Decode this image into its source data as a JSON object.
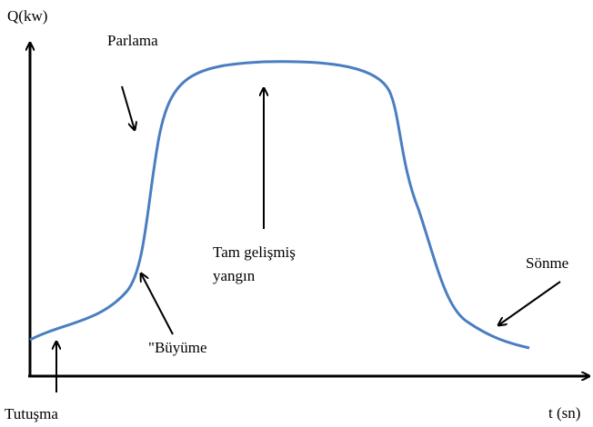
{
  "axes": {
    "y_label": "Q(kw)",
    "x_label": "t (sn)"
  },
  "labels": {
    "flashover": "Parlama",
    "fully_developed": [
      "Tam gelişmiş",
      "yangın"
    ],
    "decay": "Sönme",
    "growth": "\"Büyüme",
    "ignition": "Tutuşma"
  }
}
